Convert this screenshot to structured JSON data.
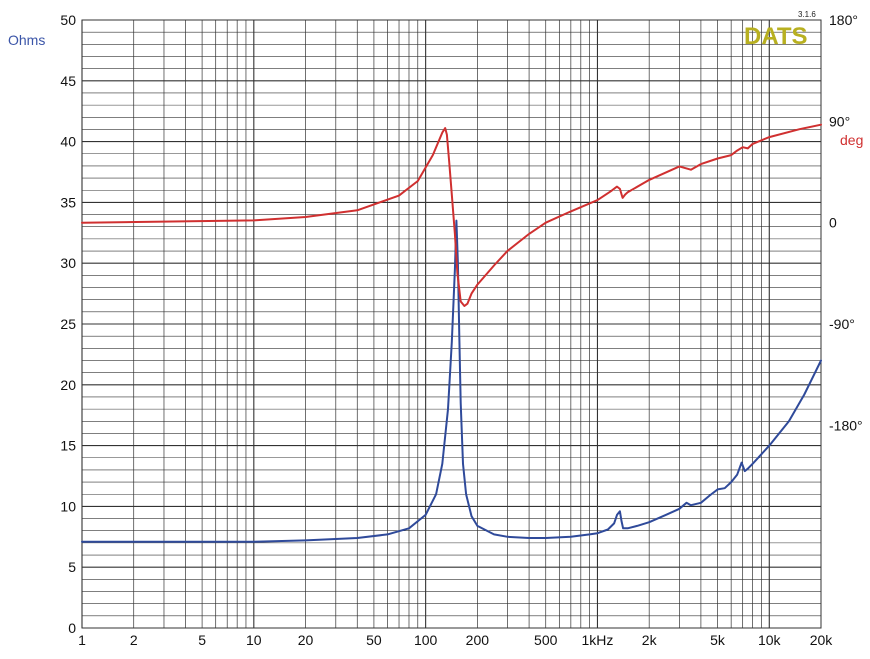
{
  "logo": {
    "text": "DATS",
    "version": "3.1.6"
  },
  "chart_data": {
    "type": "line",
    "xscale": "log",
    "xlim": [
      1,
      20000
    ],
    "x_ticks": [
      1,
      2,
      5,
      10,
      20,
      50,
      100,
      200,
      500,
      1000,
      2000,
      5000,
      10000,
      20000
    ],
    "x_tick_labels": [
      "1",
      "2",
      "5",
      "10",
      "20",
      "50",
      "100",
      "200",
      "500",
      "1kHz",
      "2k",
      "5k",
      "10k",
      "20k"
    ],
    "ylabel": "Ohms",
    "ylim": [
      0,
      50
    ],
    "y_ticks": [
      0,
      5,
      10,
      15,
      20,
      25,
      30,
      35,
      40,
      45,
      50
    ],
    "y_tick_labels": [
      "0",
      "5",
      "10",
      "15",
      "20",
      "25",
      "30",
      "35",
      "40",
      "45",
      "50"
    ],
    "y2label": "deg",
    "y2lim": [
      -360,
      180
    ],
    "y2_ticks": [
      180,
      90,
      0,
      -90,
      -180
    ],
    "y2_tick_labels": [
      "180°",
      "90°",
      "0",
      "-90°",
      "-180°"
    ],
    "grid": true,
    "colors": {
      "impedance": "#2f4a9a",
      "phase": "#d03030",
      "left_axis_label": "#3b55a8",
      "right_axis_label": "#d03030",
      "logo": "#b8b020",
      "grid": "#333333"
    },
    "series": [
      {
        "axis": "left",
        "x": [
          1,
          10,
          20,
          40,
          60,
          80,
          100,
          115,
          125,
          135,
          142,
          148,
          151,
          154,
          157,
          160,
          165,
          172,
          185,
          200,
          250,
          300,
          400,
          500,
          700,
          900,
          1000,
          1150,
          1250,
          1300,
          1350,
          1380,
          1410,
          1500,
          1700,
          2000,
          2500,
          3000,
          3300,
          3500,
          4000,
          4500,
          5000,
          5500,
          6000,
          6500,
          6900,
          7200,
          7500,
          8000,
          10000,
          13000,
          16000,
          20000
        ],
        "y": [
          7.1,
          7.1,
          7.2,
          7.4,
          7.7,
          8.2,
          9.3,
          11.0,
          13.5,
          18.0,
          23.5,
          29.5,
          33.5,
          30.0,
          24.0,
          18.5,
          13.5,
          11.0,
          9.2,
          8.4,
          7.7,
          7.5,
          7.4,
          7.4,
          7.5,
          7.7,
          7.8,
          8.1,
          8.6,
          9.3,
          9.6,
          8.8,
          8.2,
          8.2,
          8.4,
          8.7,
          9.3,
          9.8,
          10.3,
          10.1,
          10.3,
          10.9,
          11.4,
          11.5,
          12.0,
          12.6,
          13.6,
          12.9,
          13.1,
          13.5,
          15.0,
          17.0,
          19.2,
          22.0
        ]
      },
      {
        "axis": "right",
        "x": [
          1,
          10,
          20,
          40,
          70,
          90,
          110,
          125,
          130,
          133,
          137,
          142,
          148,
          153,
          160,
          168,
          175,
          185,
          200,
          250,
          300,
          400,
          500,
          700,
          1000,
          1200,
          1300,
          1350,
          1400,
          1450,
          1500,
          2000,
          3000,
          3500,
          4000,
          5000,
          6000,
          6500,
          7000,
          7500,
          8000,
          10000,
          15000,
          20000
        ],
        "y": [
          0,
          2,
          5,
          11,
          24,
          37,
          60,
          80,
          84,
          78,
          55,
          25,
          -10,
          -45,
          -70,
          -74,
          -72,
          -63,
          -55,
          -38,
          -25,
          -10,
          0,
          10,
          20,
          28,
          32,
          30,
          22,
          25,
          27,
          38,
          50,
          47,
          52,
          57,
          60,
          64,
          67,
          66,
          70,
          76,
          83,
          87
        ]
      }
    ]
  }
}
